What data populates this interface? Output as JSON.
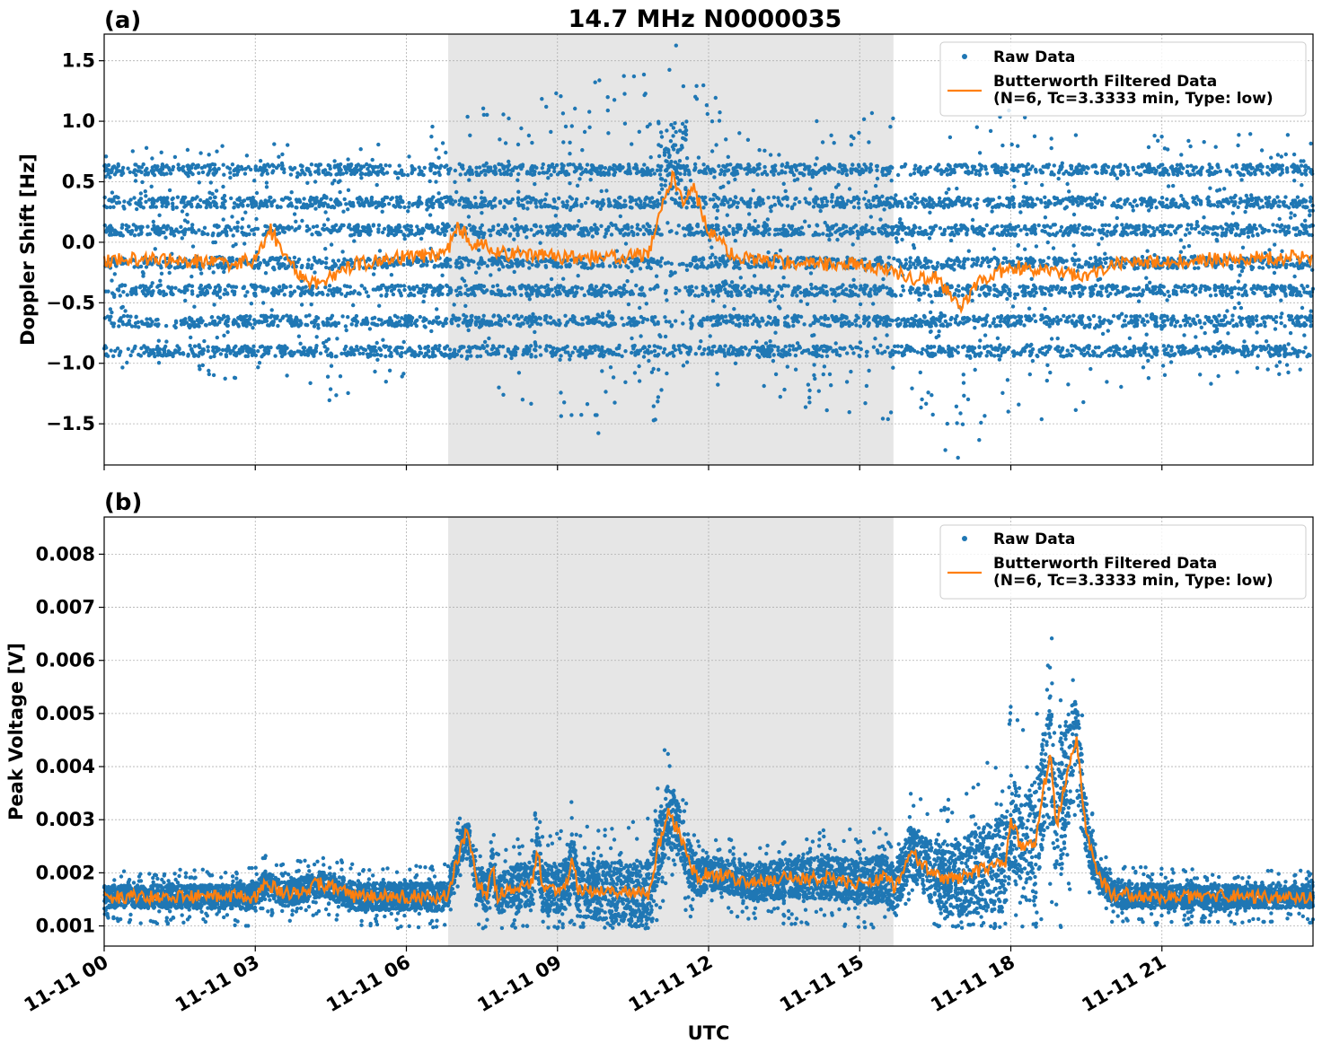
{
  "figure": {
    "title": "14.7 MHz N0000035",
    "xlabel": "UTC",
    "x_tick_labels": [
      "11-11 00",
      "11-11 03",
      "11-11 06",
      "11-11 09",
      "11-11 12",
      "11-11 15",
      "11-11 18",
      "11-11 21"
    ]
  },
  "colors": {
    "raw": "#1f77b4",
    "filtered": "#ff7f0e",
    "shade": "#e6e6e6",
    "grid": "#b0b0b0"
  },
  "chart_data": [
    {
      "panel_label": "(a)",
      "type": "scatter",
      "ylabel": "Doppler Shift [Hz]",
      "x_unit": "hours UTC on 11-11",
      "xlim": [
        0,
        24
      ],
      "ylim": [
        -1.84,
        1.72
      ],
      "y_ticks": [
        1.5,
        1.0,
        0.5,
        0.0,
        -0.5,
        -1.0,
        -1.5
      ],
      "y_tick_labels": [
        "1.5",
        "1.0",
        "0.5",
        "0.0",
        "−0.5",
        "−1.0",
        "−1.5"
      ],
      "grid": true,
      "legend_position": "top-right",
      "shaded_interval": [
        6.83,
        15.67
      ],
      "series": [
        {
          "name": "Raw Data",
          "style": "points",
          "baseline_bands": [
            0.6,
            0.33,
            0.1,
            -0.17,
            -0.4,
            -0.65,
            -0.9
          ],
          "spread_by_hour": [
            [
              0,
              0.9
            ],
            [
              6.8,
              1.1
            ],
            [
              11,
              1.6
            ],
            [
              12.5,
              1.1
            ],
            [
              15.7,
              1.3
            ],
            [
              17,
              1.4
            ],
            [
              20,
              1.1
            ],
            [
              24,
              1.0
            ]
          ]
        },
        {
          "name": "Butterworth Filtered Data\n(N=6, Tc=3.3333 min, Type: low)",
          "style": "line",
          "x": [
            0,
            1,
            2,
            2.5,
            3,
            3.3,
            3.8,
            4.2,
            5,
            6,
            6.8,
            7.0,
            7.3,
            7.7,
            8,
            9,
            10,
            10.8,
            11.1,
            11.3,
            11.5,
            11.7,
            12.0,
            12.5,
            13,
            14,
            15,
            15.6,
            16.0,
            16.5,
            17.0,
            17.3,
            17.5,
            18,
            18.5,
            19,
            19.5,
            20,
            21,
            22,
            23,
            24
          ],
          "y": [
            -0.15,
            -0.14,
            -0.16,
            -0.18,
            -0.15,
            0.1,
            -0.25,
            -0.35,
            -0.18,
            -0.12,
            -0.1,
            0.15,
            0.0,
            -0.05,
            -0.1,
            -0.12,
            -0.12,
            -0.1,
            0.35,
            0.55,
            0.3,
            0.45,
            0.1,
            -0.12,
            -0.15,
            -0.18,
            -0.18,
            -0.22,
            -0.3,
            -0.28,
            -0.55,
            -0.35,
            -0.3,
            -0.2,
            -0.22,
            -0.25,
            -0.3,
            -0.18,
            -0.15,
            -0.14,
            -0.13,
            -0.12
          ]
        }
      ]
    },
    {
      "panel_label": "(b)",
      "type": "scatter",
      "ylabel": "Peak Voltage [V]",
      "x_unit": "hours UTC on 11-11",
      "xlim": [
        0,
        24
      ],
      "ylim": [
        0.00062,
        0.0087
      ],
      "y_ticks": [
        0.008,
        0.007,
        0.006,
        0.005,
        0.004,
        0.003,
        0.002,
        0.001
      ],
      "y_tick_labels": [
        "0.008",
        "0.007",
        "0.006",
        "0.005",
        "0.004",
        "0.003",
        "0.002",
        "0.001"
      ],
      "grid": true,
      "legend_position": "top-right",
      "shaded_interval": [
        6.83,
        15.67
      ],
      "series": [
        {
          "name": "Raw Data",
          "style": "points",
          "spread_by_hour": [
            [
              0,
              0.00035
            ],
            [
              6.8,
              0.00045
            ],
            [
              11,
              0.0011
            ],
            [
              12,
              0.0005
            ],
            [
              16,
              0.0008
            ],
            [
              18,
              0.0016
            ],
            [
              19,
              0.0022
            ],
            [
              19.7,
              0.0004
            ],
            [
              24,
              0.00035
            ]
          ]
        },
        {
          "name": "Butterworth Filtered Data\n(N=6, Tc=3.3333 min, Type: low)",
          "style": "line",
          "x": [
            0,
            3,
            3.2,
            3.6,
            4.0,
            4.3,
            5,
            6.8,
            7.0,
            7.2,
            7.4,
            7.6,
            7.7,
            7.8,
            8,
            8.5,
            8.6,
            8.7,
            9,
            9.2,
            9.3,
            9.4,
            10,
            10.8,
            11.0,
            11.2,
            11.4,
            11.6,
            11.8,
            12,
            13,
            13.5,
            14,
            14.5,
            15,
            15.5,
            15.7,
            16.0,
            16.3,
            16.6,
            17,
            17.5,
            17.9,
            18.0,
            18.2,
            18.5,
            18.6,
            18.8,
            18.9,
            19.1,
            19.3,
            19.5,
            19.7,
            20,
            21,
            22,
            23,
            24
          ],
          "y": [
            0.00155,
            0.00155,
            0.0018,
            0.0016,
            0.0017,
            0.0018,
            0.00155,
            0.00155,
            0.0022,
            0.0028,
            0.0018,
            0.0016,
            0.0022,
            0.00155,
            0.0017,
            0.0018,
            0.0025,
            0.0017,
            0.0017,
            0.0018,
            0.0023,
            0.0017,
            0.00165,
            0.0016,
            0.0025,
            0.0031,
            0.0028,
            0.0022,
            0.0019,
            0.002,
            0.0018,
            0.0019,
            0.0019,
            0.0019,
            0.0018,
            0.0019,
            0.0017,
            0.0024,
            0.0021,
            0.0019,
            0.0019,
            0.0021,
            0.0022,
            0.003,
            0.0025,
            0.0026,
            0.0034,
            0.0042,
            0.0028,
            0.0038,
            0.0045,
            0.0028,
            0.002,
            0.0016,
            0.00155,
            0.00155,
            0.00155,
            0.00155
          ]
        }
      ]
    }
  ]
}
